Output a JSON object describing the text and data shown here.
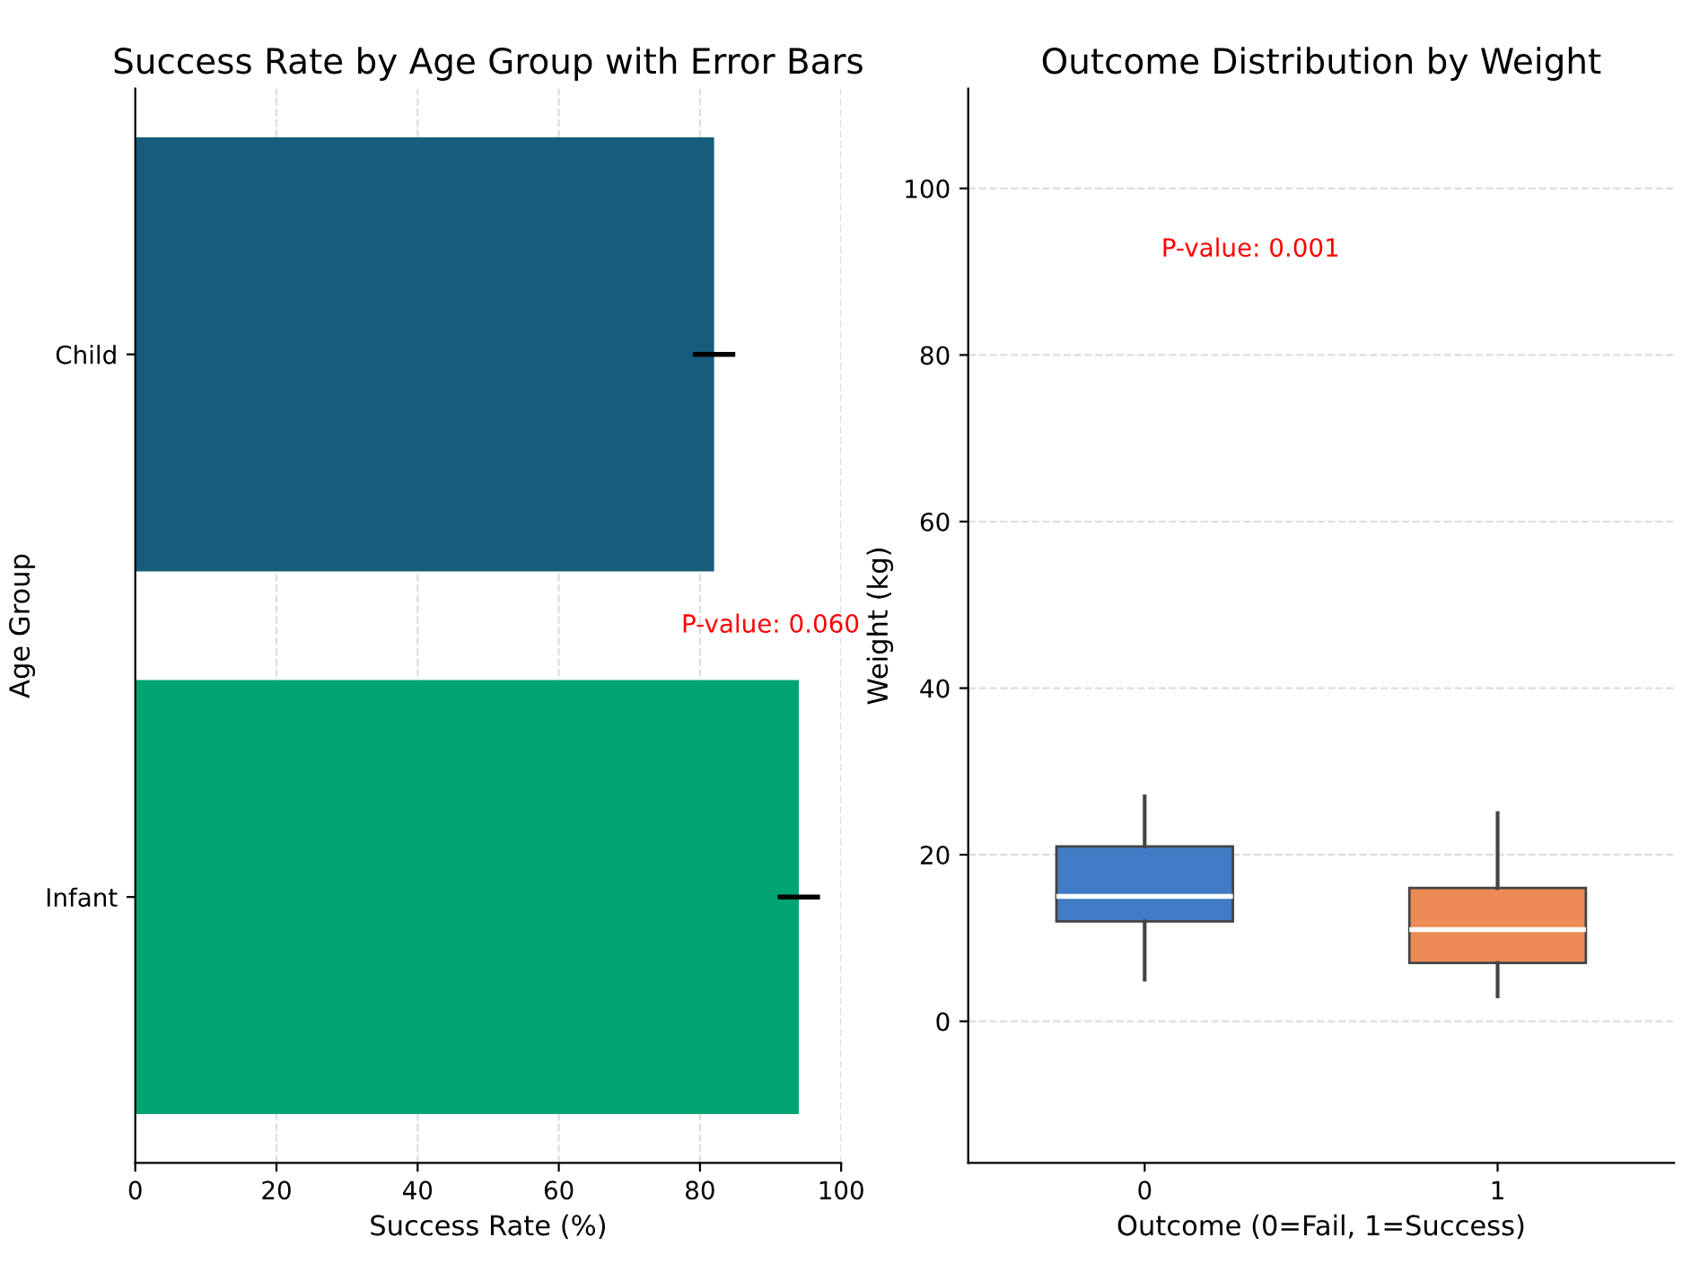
{
  "chart_data": [
    {
      "type": "bar",
      "orientation": "horizontal",
      "title": "Success Rate by Age Group with Error Bars",
      "xlabel": "Success Rate (%)",
      "ylabel": "Age Group",
      "categories": [
        "Child",
        "Infant"
      ],
      "values": [
        82,
        94
      ],
      "errors": [
        3,
        3
      ],
      "colors": [
        "#155d7b",
        "#00a573"
      ],
      "xlim": [
        0,
        100
      ],
      "xticks": [
        0,
        20,
        40,
        60,
        80,
        100
      ],
      "grid": "x",
      "annotations": [
        "P-value: 0.060"
      ]
    },
    {
      "type": "box",
      "title": "Outcome Distribution by Weight",
      "xlabel": "Outcome (0=Fail, 1=Success)",
      "ylabel": "Weight (kg)",
      "categories": [
        "0",
        "1"
      ],
      "colors": [
        "#3f7cc5",
        "#ee8a55"
      ],
      "boxes": [
        {
          "low": 5,
          "q1": 12,
          "median": 15,
          "q3": 21,
          "high": 27
        },
        {
          "low": 3,
          "q1": 7,
          "median": 11,
          "q3": 16,
          "high": 25
        }
      ],
      "ylim": [
        -17,
        112
      ],
      "yticks": [
        0,
        20,
        40,
        60,
        80,
        100
      ],
      "grid": "y",
      "annotations": [
        "P-value: 0.001"
      ]
    }
  ]
}
